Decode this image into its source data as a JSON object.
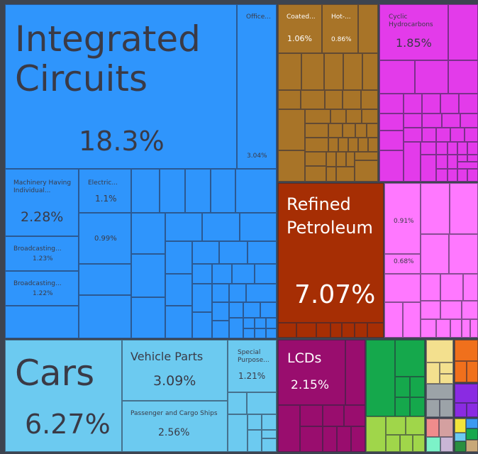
{
  "chart_data": {
    "type": "treemap",
    "items": [
      {
        "name": "Integrated Circuits",
        "value": "18.3%",
        "color": "#2f95fc"
      },
      {
        "name": "Office...",
        "value": "3.04%",
        "color": "#2f95fc"
      },
      {
        "name": "Machinery Having Individual...",
        "value": "2.28%",
        "color": "#2f95fc"
      },
      {
        "name": "Electric...",
        "value": "1.1%",
        "color": "#2f95fc"
      },
      {
        "name": "",
        "value": "0.99%",
        "color": "#2f95fc"
      },
      {
        "name": "Broadcasting...",
        "value": "1.23%",
        "color": "#2f95fc"
      },
      {
        "name": "Broadcasting...",
        "value": "1.22%",
        "color": "#2f95fc"
      },
      {
        "name": "Cars",
        "value": "6.27%",
        "color": "#6ccaf0"
      },
      {
        "name": "Vehicle Parts",
        "value": "3.09%",
        "color": "#6ccaf0"
      },
      {
        "name": "Passenger and Cargo Ships",
        "value": "2.56%",
        "color": "#6ccaf0"
      },
      {
        "name": "Special Purpose...",
        "value": "1.21%",
        "color": "#6ccaf0"
      },
      {
        "name": "Coated...",
        "value": "1.06%",
        "color": "#a87428"
      },
      {
        "name": "Hot-...",
        "value": "0.86%",
        "color": "#a87428"
      },
      {
        "name": "Cyclic Hydrocarbons",
        "value": "1.85%",
        "color": "#e33bea"
      },
      {
        "name": "Refined Petroleum",
        "value": "7.07%",
        "color": "#a62e04"
      },
      {
        "name": "",
        "value": "0.91%",
        "color": "#ff78ff"
      },
      {
        "name": "",
        "value": "0.68%",
        "color": "#ff78ff"
      },
      {
        "name": "LCDs",
        "value": "2.15%",
        "color": "#990d6e"
      }
    ]
  }
}
